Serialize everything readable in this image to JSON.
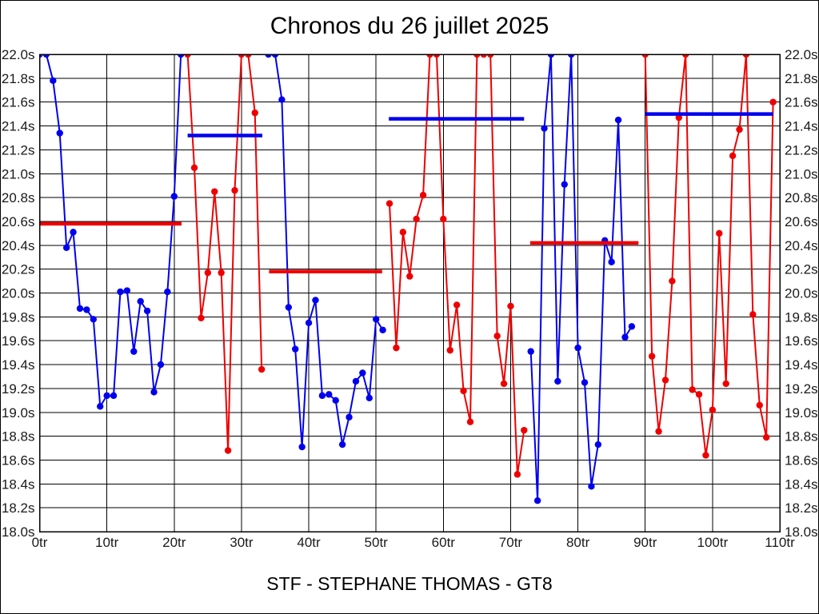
{
  "chart_data": {
    "type": "line",
    "title": "Chronos du 26 juillet 2025",
    "footer": "STF - STEPHANE THOMAS - GT8",
    "x_axis": {
      "min": 0,
      "max": 110,
      "tick_step": 10,
      "unit_suffix": "tr"
    },
    "y_axis": {
      "min": 18.0,
      "max": 22.0,
      "tick_step": 0.2,
      "unit_suffix": "s",
      "decimals": 1
    },
    "grid": true,
    "legend": "none",
    "colors": {
      "blue_series": "#0000ee",
      "red_series": "#ee0000",
      "grid": "#000000",
      "text": "#1a1a1a"
    },
    "series": [
      {
        "name": "stint-1-blue",
        "color": "#0000ee",
        "start_lap": 0,
        "values": [
          22.0,
          22.0,
          21.78,
          21.34,
          20.38,
          20.51,
          19.87,
          19.86,
          19.78,
          19.05,
          19.14,
          19.14,
          20.01,
          20.02,
          19.51,
          19.93,
          19.85,
          19.17,
          19.4,
          20.01,
          20.81,
          22.0
        ]
      },
      {
        "name": "stint-2-red",
        "color": "#ee0000",
        "start_lap": 22,
        "values": [
          22.0,
          21.05,
          19.79,
          20.17,
          20.85,
          20.17,
          18.68,
          20.86,
          22.0,
          22.0,
          21.51,
          19.36
        ]
      },
      {
        "name": "stint-3-blue",
        "color": "#0000ee",
        "start_lap": 34,
        "values": [
          22.0,
          22.0,
          21.62,
          19.88,
          19.53,
          18.71,
          19.75,
          19.94,
          19.14,
          19.15,
          19.1,
          18.73,
          18.96,
          19.26,
          19.33,
          19.12,
          19.78,
          19.69
        ]
      },
      {
        "name": "stint-4-red",
        "color": "#ee0000",
        "start_lap": 52,
        "values": [
          20.75,
          19.54,
          20.51,
          20.14,
          20.62,
          20.82,
          22.0,
          22.0,
          20.62,
          19.52,
          19.9,
          19.18,
          18.92,
          22.0,
          22.0,
          22.0,
          19.64,
          19.24,
          19.89,
          18.48,
          18.85
        ]
      },
      {
        "name": "stint-5-blue",
        "color": "#0000ee",
        "start_lap": 73,
        "values": [
          19.51,
          18.26,
          21.38,
          22.0,
          19.26,
          20.91,
          22.0,
          19.54,
          19.25,
          18.38,
          18.73,
          20.44,
          20.26,
          21.45,
          19.63,
          19.72
        ]
      },
      {
        "name": "stint-6-red",
        "color": "#ee0000",
        "start_lap": 90,
        "values": [
          22.0,
          19.47,
          18.84,
          19.27,
          20.1,
          21.47,
          22.0,
          19.19,
          19.15,
          18.64,
          19.02,
          20.5,
          19.24,
          21.15,
          21.37,
          22.0,
          19.82,
          19.06,
          18.79,
          21.6
        ]
      }
    ],
    "average_lines": [
      {
        "name": "avg-stint-1",
        "color": "#ee0000",
        "value": 20.58,
        "from_lap": 0.0,
        "to_lap": 21.1
      },
      {
        "name": "avg-stint-2",
        "color": "#0000ee",
        "value": 21.32,
        "from_lap": 22.0,
        "to_lap": 33.1
      },
      {
        "name": "avg-stint-3",
        "color": "#ee0000",
        "value": 20.18,
        "from_lap": 34.1,
        "to_lap": 50.9
      },
      {
        "name": "avg-stint-4",
        "color": "#0000ee",
        "value": 21.46,
        "from_lap": 51.9,
        "to_lap": 72.0
      },
      {
        "name": "avg-stint-5",
        "color": "#ee0000",
        "value": 20.42,
        "from_lap": 72.9,
        "to_lap": 89.0
      },
      {
        "name": "avg-stint-6",
        "color": "#0000ee",
        "value": 21.5,
        "from_lap": 90.0,
        "to_lap": 109.0
      }
    ]
  }
}
